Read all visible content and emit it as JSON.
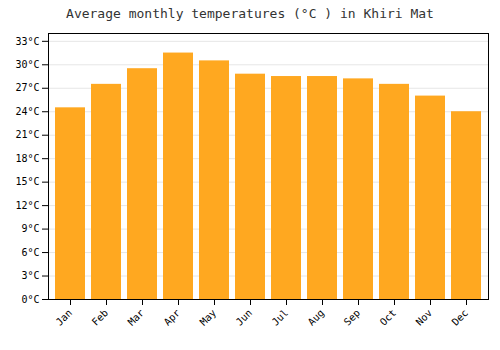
{
  "chart_data": {
    "type": "bar",
    "title": "Average monthly temperatures (°C ) in Khiri Mat",
    "categories": [
      "Jan",
      "Feb",
      "Mar",
      "Apr",
      "May",
      "Jun",
      "Jul",
      "Aug",
      "Sep",
      "Oct",
      "Nov",
      "Dec"
    ],
    "values": [
      24.5,
      27.5,
      29.5,
      31.5,
      30.5,
      28.8,
      28.5,
      28.5,
      28.2,
      27.5,
      26.0,
      24.0
    ],
    "color": "#FFA820",
    "ylim": [
      0,
      34
    ],
    "yticks": [
      {
        "value": 0,
        "label": "0°C"
      },
      {
        "value": 3,
        "label": "3°C"
      },
      {
        "value": 6,
        "label": "6°C"
      },
      {
        "value": 9,
        "label": "9°C"
      },
      {
        "value": 12,
        "label": "12°C"
      },
      {
        "value": 15,
        "label": "15°C"
      },
      {
        "value": 18,
        "label": "18°C"
      },
      {
        "value": 21,
        "label": "21°C"
      },
      {
        "value": 24,
        "label": "24°C"
      },
      {
        "value": 27,
        "label": "27°C"
      },
      {
        "value": 30,
        "label": "30°C"
      },
      {
        "value": 33,
        "label": "33°C"
      }
    ],
    "grid": true
  }
}
